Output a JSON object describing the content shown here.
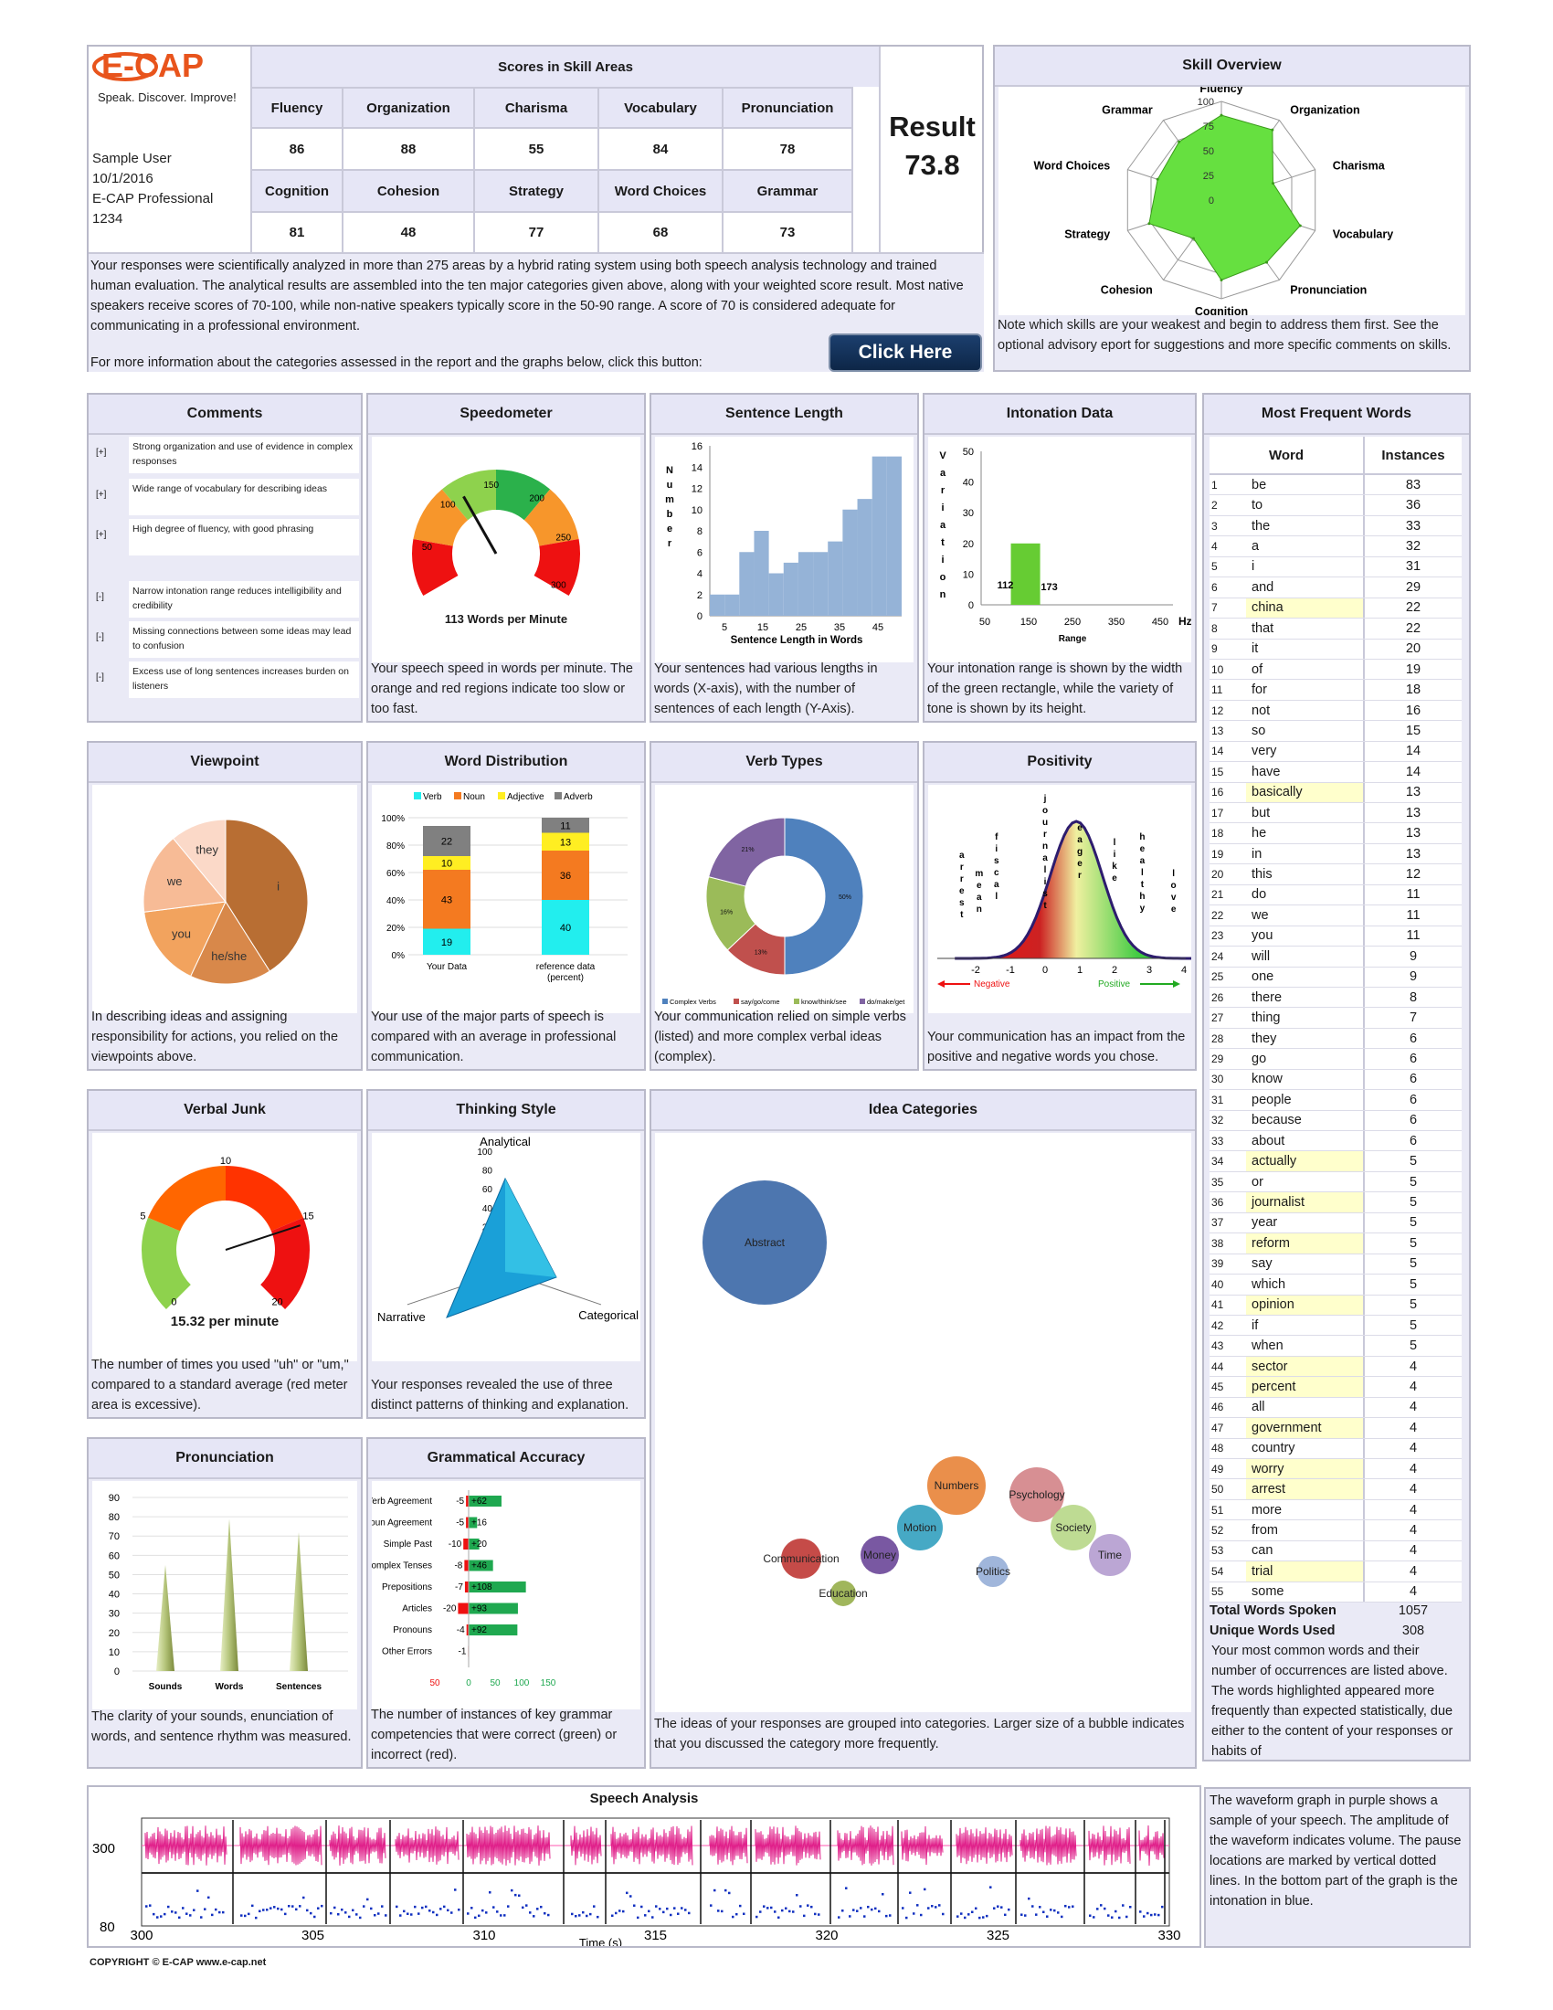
{
  "brand": {
    "logo": "E-CAP",
    "tagline": "Speak. Discover. Improve!"
  },
  "user": {
    "name": "Sample User",
    "date": "10/1/2016",
    "product": "E-CAP Professional",
    "id": "1234"
  },
  "scores": {
    "title": "Scores in Skill Areas",
    "row1": [
      {
        "label": "Fluency",
        "value": "86"
      },
      {
        "label": "Organization",
        "value": "88"
      },
      {
        "label": "Charisma",
        "value": "55"
      },
      {
        "label": "Vocabulary",
        "value": "84"
      },
      {
        "label": "Pronunciation",
        "value": "78"
      }
    ],
    "row2": [
      {
        "label": "Cognition",
        "value": "81"
      },
      {
        "label": "Cohesion",
        "value": "48"
      },
      {
        "label": "Strategy",
        "value": "77"
      },
      {
        "label": "Word Choices",
        "value": "68"
      },
      {
        "label": "Grammar",
        "value": "73"
      }
    ]
  },
  "result": {
    "label": "Result",
    "value": "73.8"
  },
  "intro": {
    "text": "Your responses were scientifically analyzed in more than 275 areas by a hybrid rating system using both speech analysis technology and trained human evaluation. The analytical results are assembled into the ten major categories given above, along with your weighted score result. Most native speakers receive scores of 70-100, while non-native speakers typically score in the 50-90 range. A score of 70 is considered adequate for communicating in a professional environment.",
    "more": "For more information about the categories assessed in the report and the graphs below, click this button:",
    "button": "Click Here"
  },
  "skill_overview": {
    "title": "Skill Overview",
    "note": "Note which skills are your weakest and begin to address them first. See the optional advisory eport for suggestions and more specific comments on skills.",
    "ticks": [
      "100",
      "75",
      "50",
      "25",
      "0"
    ]
  },
  "comments": {
    "title": "Comments",
    "items": [
      {
        "tag": "[+]",
        "text": "Strong organization and use of evidence in complex responses"
      },
      {
        "tag": "[+]",
        "text": "Wide range of vocabulary for describing ideas"
      },
      {
        "tag": "[+]",
        "text": "High degree of fluency, with good phrasing"
      },
      {
        "tag": "[-]",
        "text": "Narrow intonation range reduces intelligibility and credibility"
      },
      {
        "tag": "[-]",
        "text": "Missing connections between some ideas may lead to confusion"
      },
      {
        "tag": "[-]",
        "text": "Excess use of long sentences increases burden on listeners"
      }
    ]
  },
  "speedometer": {
    "title": "Speedometer",
    "ticks": [
      "50",
      "100",
      "150",
      "200",
      "250",
      "300"
    ],
    "readout": "113 Words per Minute",
    "value": 113,
    "caption": "Your speech speed in words per minute. The orange and red regions indicate too slow or too fast."
  },
  "sentence_length": {
    "title": "Sentence Length",
    "caption": "Your sentences had various lengths in words (X-axis), with the number of sentences of each length (Y-Axis)."
  },
  "intonation": {
    "title": "Intonation Data",
    "caption": "Your intonation range is shown by the width of the green rectangle, while the variety of tone is shown by its height."
  },
  "frequent_words": {
    "title": "Most Frequent Words",
    "col_word": "Word",
    "col_inst": "Instances",
    "rows": [
      [
        "1",
        "be",
        "83",
        0
      ],
      [
        "2",
        "to",
        "36",
        0
      ],
      [
        "3",
        "the",
        "33",
        0
      ],
      [
        "4",
        "a",
        "32",
        0
      ],
      [
        "5",
        "i",
        "31",
        0
      ],
      [
        "6",
        "and",
        "29",
        0
      ],
      [
        "7",
        "china",
        "22",
        1
      ],
      [
        "8",
        "that",
        "22",
        0
      ],
      [
        "9",
        "it",
        "20",
        0
      ],
      [
        "10",
        "of",
        "19",
        0
      ],
      [
        "11",
        "for",
        "18",
        0
      ],
      [
        "12",
        "not",
        "16",
        0
      ],
      [
        "13",
        "so",
        "15",
        0
      ],
      [
        "14",
        "very",
        "14",
        0
      ],
      [
        "15",
        "have",
        "14",
        0
      ],
      [
        "16",
        "basically",
        "13",
        1
      ],
      [
        "17",
        "but",
        "13",
        0
      ],
      [
        "18",
        "he",
        "13",
        0
      ],
      [
        "19",
        "in",
        "13",
        0
      ],
      [
        "20",
        "this",
        "12",
        0
      ],
      [
        "21",
        "do",
        "11",
        0
      ],
      [
        "22",
        "we",
        "11",
        0
      ],
      [
        "23",
        "you",
        "11",
        0
      ],
      [
        "24",
        "will",
        "9",
        0
      ],
      [
        "25",
        "one",
        "9",
        0
      ],
      [
        "26",
        "there",
        "8",
        0
      ],
      [
        "27",
        "thing",
        "7",
        0
      ],
      [
        "28",
        "they",
        "6",
        0
      ],
      [
        "29",
        "go",
        "6",
        0
      ],
      [
        "30",
        "know",
        "6",
        0
      ],
      [
        "31",
        "people",
        "6",
        0
      ],
      [
        "32",
        "because",
        "6",
        0
      ],
      [
        "33",
        "about",
        "6",
        0
      ],
      [
        "34",
        "actually",
        "5",
        1
      ],
      [
        "35",
        "or",
        "5",
        0
      ],
      [
        "36",
        "journalist",
        "5",
        1
      ],
      [
        "37",
        "year",
        "5",
        0
      ],
      [
        "38",
        "reform",
        "5",
        1
      ],
      [
        "39",
        "say",
        "5",
        0
      ],
      [
        "40",
        "which",
        "5",
        0
      ],
      [
        "41",
        "opinion",
        "5",
        1
      ],
      [
        "42",
        "if",
        "5",
        0
      ],
      [
        "43",
        "when",
        "5",
        0
      ],
      [
        "44",
        "sector",
        "4",
        1
      ],
      [
        "45",
        "percent",
        "4",
        1
      ],
      [
        "46",
        "all",
        "4",
        0
      ],
      [
        "47",
        "government",
        "4",
        1
      ],
      [
        "48",
        "country",
        "4",
        0
      ],
      [
        "49",
        "worry",
        "4",
        1
      ],
      [
        "50",
        "arrest",
        "4",
        1
      ],
      [
        "51",
        "more",
        "4",
        0
      ],
      [
        "52",
        "from",
        "4",
        0
      ],
      [
        "53",
        "can",
        "4",
        0
      ],
      [
        "54",
        "trial",
        "4",
        1
      ],
      [
        "55",
        "some",
        "4",
        0
      ]
    ],
    "total_label": "Total Words Spoken",
    "total_value": "1057",
    "unique_label": "Unique Words Used",
    "unique_value": "308",
    "caption": "Your most common words and their number of occurrences are listed above. The words highlighted appeared more frequently than expected statistically, due either to the content of your responses or habits of"
  },
  "viewpoint": {
    "title": "Viewpoint",
    "caption": "In describing ideas and assigning responsibility for actions, you relied on the viewpoints above."
  },
  "word_distribution": {
    "title": "Word Distribution",
    "caption": "Your use of the major parts of speech is compared with an average in professional communication."
  },
  "verb_types": {
    "title": "Verb Types",
    "caption": "Your communication relied on simple verbs (listed) and more complex verbal ideas (complex)."
  },
  "positivity": {
    "title": "Positivity",
    "caption": "Your communication has an impact from the positive and negative words you chose.",
    "neg_label": "Negative",
    "pos_label": "Positive",
    "axis": [
      "-2",
      "-1",
      "0",
      "1",
      "2",
      "3",
      "4"
    ],
    "words": [
      "arrest",
      "mean",
      "fiscal",
      "journalist",
      "eager",
      "like",
      "healthy",
      "love"
    ]
  },
  "verbal_junk": {
    "title": "Verbal Junk",
    "ticks": [
      "0",
      "5",
      "10",
      "15",
      "20"
    ],
    "readout": "15.32  per minute",
    "value": 15.32,
    "caption": "The number of times you used \"uh\" or \"um,\" compared to a standard average (red meter area is excessive)."
  },
  "thinking_style": {
    "title": "Thinking Style",
    "labels": [
      "Analytical",
      "Narrative",
      "Categorical"
    ],
    "ticks": [
      "100",
      "80",
      "60",
      "40",
      "20",
      "0"
    ],
    "caption": "Your responses revealed the use of three distinct patterns of thinking and explanation."
  },
  "idea_categories": {
    "title": "Idea Categories",
    "caption": "The ideas of your responses are grouped into categories. Larger size of a bubble indicates that you discussed the category more frequently."
  },
  "pronunciation": {
    "title": "Pronunciation",
    "caption": "The clarity of your sounds, enunciation of words, and sentence rhythm was measured."
  },
  "grammatical_accuracy": {
    "title": "Grammatical Accuracy",
    "caption": "The number of instances of key grammar competencies that were correct (green) or incorrect (red)."
  },
  "speech_analysis": {
    "title": "Speech Analysis",
    "side_text": "The waveform graph in purple shows a sample of your speech. The amplitude of the waveform indicates volume. The pause locations are marked by vertical dotted lines. In the bottom part of the graph is the intonation in blue.",
    "y_labels": [
      "300",
      "80"
    ],
    "x_labels": [
      "300",
      "305",
      "310",
      "315",
      "320",
      "325",
      "330"
    ],
    "x_title": "Time (s)"
  },
  "footer": {
    "copyright": "COPYRIGHT © E-CAP   www.e-cap.net"
  },
  "colors": {
    "green": "#66e040",
    "panel": "#eaeaf6",
    "blue": "#8fb3e0",
    "red": "#ee1111",
    "orange": "#f7962b"
  },
  "chart_data": [
    {
      "type": "radar",
      "name": "skill_overview",
      "axes": [
        "Fluency",
        "Organization",
        "Charisma",
        "Vocabulary",
        "Pronunciation",
        "Cognition",
        "Cohesion",
        "Strategy",
        "Word Choices",
        "Grammar"
      ],
      "values": [
        86,
        88,
        55,
        84,
        78,
        81,
        48,
        77,
        68,
        73
      ],
      "rlim": [
        0,
        100
      ]
    },
    {
      "type": "bar",
      "name": "sentence_length",
      "xlabel": "Sentence Length in Words",
      "ylabel": "Number",
      "x": [
        1,
        5,
        9,
        13,
        17,
        21,
        25,
        29,
        33,
        37,
        41,
        45,
        49
      ],
      "values": [
        2,
        2,
        6,
        8,
        4,
        5,
        6,
        6,
        7,
        10,
        11,
        15,
        15
      ],
      "xticks": [
        "5",
        "15",
        "25",
        "35",
        "45"
      ],
      "yticks": [
        "0",
        "2",
        "4",
        "6",
        "8",
        "10",
        "12",
        "14",
        "16"
      ],
      "ylim": [
        0,
        16
      ]
    },
    {
      "type": "bar",
      "name": "intonation",
      "xlabel": "Range",
      "ylabel": "Variation",
      "unit": "Hz",
      "range": [
        112,
        173
      ],
      "height": 20,
      "xticks": [
        "50",
        "150",
        "250",
        "350",
        "450"
      ],
      "yticks": [
        "0",
        "10",
        "20",
        "30",
        "40",
        "50"
      ],
      "xlim": [
        50,
        450
      ],
      "ylim": [
        0,
        50
      ]
    },
    {
      "type": "pie",
      "name": "viewpoint",
      "labels": [
        "i",
        "he/she",
        "you",
        "we",
        "they"
      ],
      "values": [
        41,
        16,
        16,
        16,
        11
      ]
    },
    {
      "type": "bar",
      "name": "word_distribution",
      "stacked": true,
      "categories": [
        "Your Data",
        "reference data (percent)"
      ],
      "series": [
        {
          "name": "Verb",
          "values": [
            19,
            40
          ]
        },
        {
          "name": "Noun",
          "values": [
            43,
            36
          ]
        },
        {
          "name": "Adjective",
          "values": [
            10,
            13
          ]
        },
        {
          "name": "Adverb",
          "values": [
            22,
            11
          ]
        }
      ],
      "yticks": [
        "0%",
        "20%",
        "40%",
        "60%",
        "80%",
        "100%"
      ]
    },
    {
      "type": "pie",
      "name": "verb_types",
      "donut": true,
      "labels": [
        "Complex Verbs",
        "say/go/come",
        "know/think/see",
        "do/make/get"
      ],
      "values": [
        50,
        13,
        16,
        21
      ],
      "display": [
        "50%",
        "13%",
        "16%",
        "21%"
      ]
    },
    {
      "type": "bar",
      "name": "pronunciation",
      "categories": [
        "Sounds",
        "Words",
        "Sentences"
      ],
      "values": [
        55,
        79,
        72
      ],
      "yticks": [
        "0",
        "10",
        "20",
        "30",
        "40",
        "50",
        "60",
        "70",
        "80",
        "90"
      ],
      "ylim": [
        0,
        90
      ]
    },
    {
      "type": "bar",
      "name": "grammatical_accuracy",
      "orientation": "horizontal",
      "categories": [
        "Verb Agreement",
        "Noun Agreement",
        "Simple Past",
        "Complex Tenses",
        "Prepositions",
        "Articles",
        "Pronouns",
        "Other Errors"
      ],
      "incorrect": [
        "-5",
        "-5",
        "-10",
        "-8",
        "-7",
        "-20",
        "-4",
        "-1"
      ],
      "correct": [
        "+62",
        "+16",
        "+20",
        "+46",
        "+108",
        "+93",
        "+92",
        ""
      ],
      "incorrect_values": [
        5,
        5,
        10,
        8,
        7,
        20,
        4,
        1
      ],
      "correct_values": [
        62,
        16,
        20,
        46,
        108,
        93,
        92,
        0
      ],
      "xticks": [
        "50",
        "0",
        "50",
        "100",
        "150"
      ]
    },
    {
      "type": "scatter",
      "name": "idea_categories",
      "bubble": true,
      "labels": [
        "Abstract",
        "Numbers",
        "Psychology",
        "Society",
        "Time",
        "Motion",
        "Money",
        "Communication",
        "Politics",
        "Education"
      ],
      "sizes": [
        100,
        36,
        38,
        28,
        25,
        28,
        22,
        24,
        18,
        14
      ]
    },
    {
      "type": "area",
      "name": "positivity",
      "x": [
        -2,
        -1,
        0,
        1,
        2,
        3,
        4
      ],
      "words": [
        {
          "word": "arrest",
          "x": -2.4
        },
        {
          "word": "mean",
          "x": -1.9
        },
        {
          "word": "fiscal",
          "x": -1.4
        },
        {
          "word": "journalist",
          "x": 0.0
        },
        {
          "word": "eager",
          "x": 1.0
        },
        {
          "word": "like",
          "x": 2.0
        },
        {
          "word": "healthy",
          "x": 2.8
        },
        {
          "word": "love",
          "x": 3.7
        }
      ]
    },
    {
      "type": "radar",
      "name": "thinking_style",
      "axes": [
        "Analytical",
        "Categorical",
        "Narrative"
      ],
      "values": [
        100,
        10,
        55
      ],
      "rlim": [
        0,
        100
      ]
    },
    {
      "type": "line",
      "name": "speech_analysis",
      "xlim": [
        300,
        330
      ],
      "xticks": [
        "300",
        "305",
        "310",
        "315",
        "320",
        "325",
        "330"
      ],
      "xlabel": "Time (s)"
    }
  ]
}
